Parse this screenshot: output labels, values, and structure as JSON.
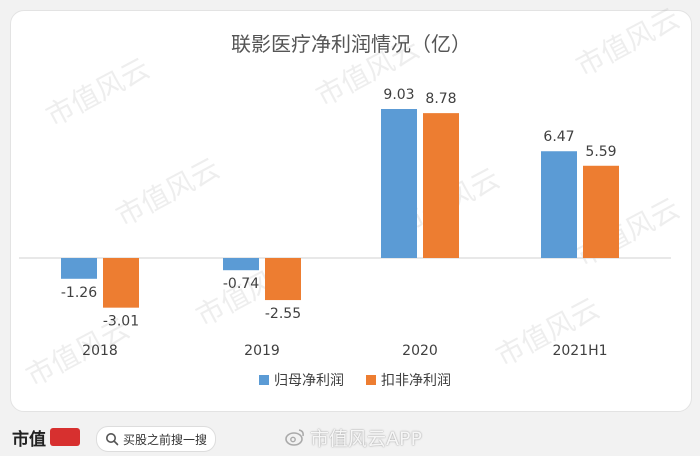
{
  "chart_data": {
    "type": "bar",
    "title": "联影医疗净利润情况（亿）",
    "categories": [
      "2018",
      "2019",
      "2020",
      "2021H1"
    ],
    "series": [
      {
        "name": "归母净利润",
        "values": [
          -1.26,
          -0.74,
          9.03,
          6.47
        ],
        "color": "#5b9bd5"
      },
      {
        "name": "扣非净利润",
        "values": [
          -3.01,
          -2.55,
          8.78,
          5.59
        ],
        "color": "#ed7d31"
      }
    ],
    "value_labels": [
      [
        "-1.26",
        "-0.74",
        "9.03",
        "6.47"
      ],
      [
        "-3.01",
        "-2.55",
        "8.78",
        "5.59"
      ]
    ],
    "legend_position": "bottom",
    "grid": false
  },
  "watermark": {
    "text": "市值风云"
  },
  "footer": {
    "brand": "市值",
    "search_placeholder": "买股之前搜一搜",
    "weibo_handle": "市值风云APP"
  }
}
